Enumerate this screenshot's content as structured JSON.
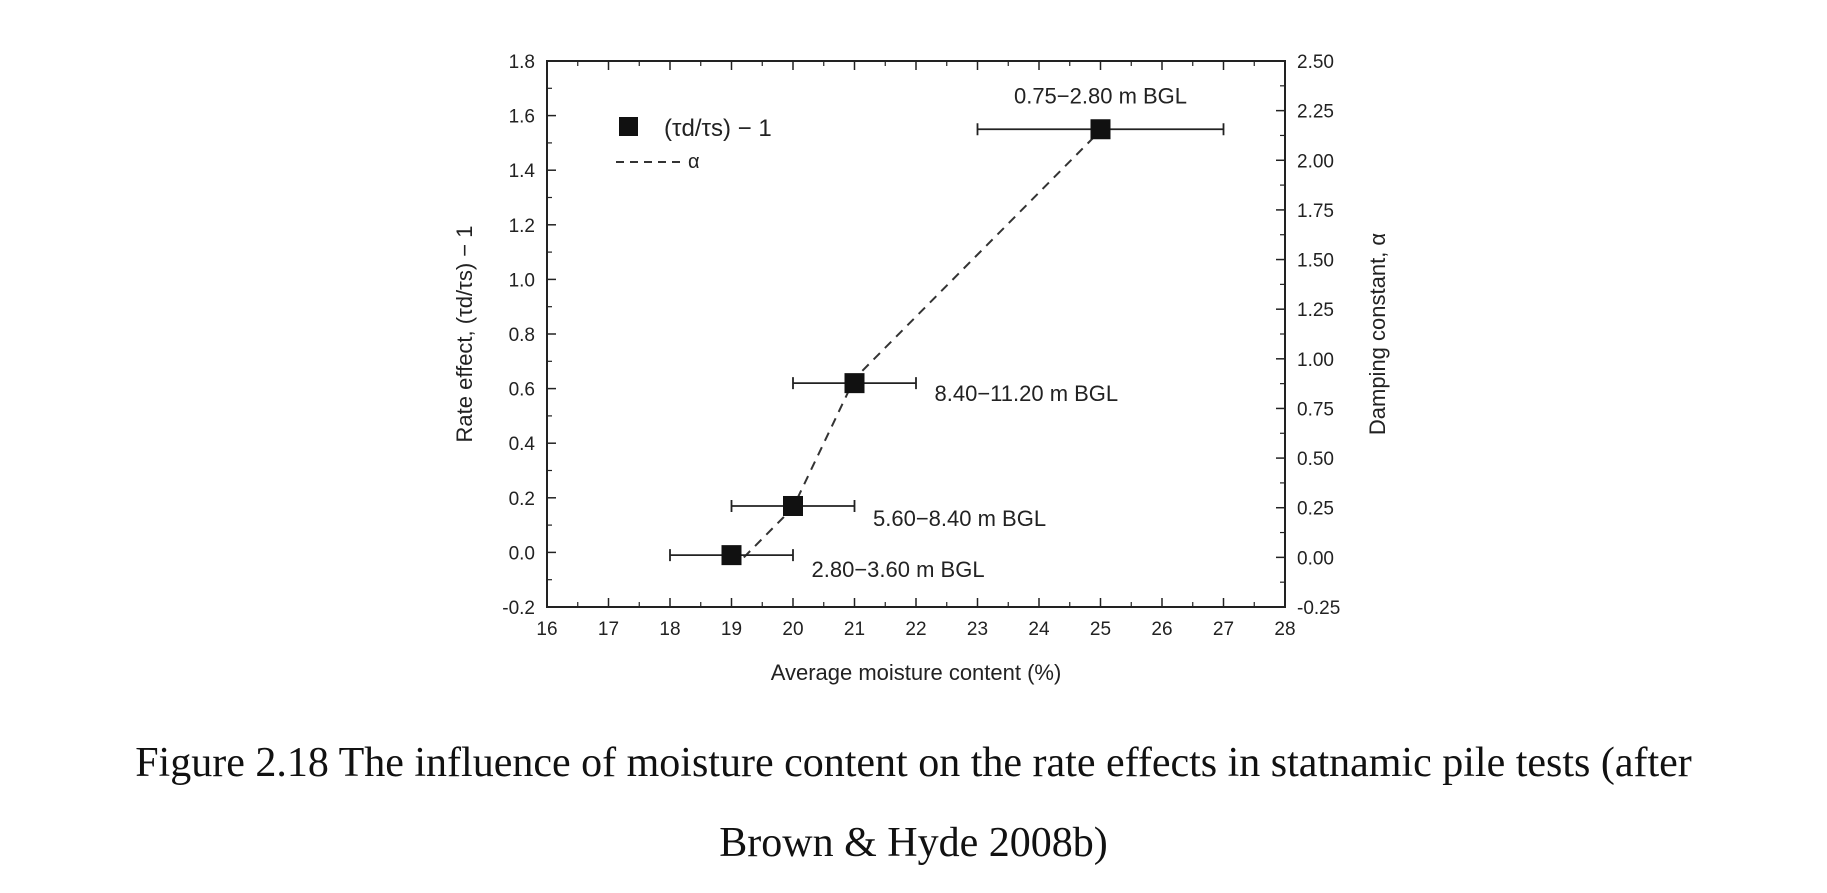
{
  "chart_data": {
    "type": "scatter",
    "xlabel": "Average moisture content (%)",
    "ylabel": "Rate effect, (τd/τs) − 1",
    "y2label": "Damping constant, α",
    "xlim": [
      16,
      28
    ],
    "ylim": [
      -0.2,
      1.8
    ],
    "y2lim": [
      -0.25,
      2.5
    ],
    "x_ticks": [
      16,
      17,
      18,
      19,
      20,
      21,
      22,
      23,
      24,
      25,
      26,
      27,
      28
    ],
    "y_ticks": [
      "-0.2",
      "0.0",
      "0.2",
      "0.4",
      "0.6",
      "0.8",
      "1.0",
      "1.2",
      "1.4",
      "1.6",
      "1.8"
    ],
    "y2_ticks": [
      "-0.25",
      "0.00",
      "0.25",
      "0.50",
      "0.75",
      "1.00",
      "1.25",
      "1.50",
      "1.75",
      "2.00",
      "2.25",
      "2.50"
    ],
    "legend_position": "top-left",
    "legend": [
      {
        "label_main": "(τd/τs) − 1",
        "marker": "square"
      },
      {
        "label_main": "α",
        "marker": "dashed-line"
      }
    ],
    "series": [
      {
        "name": "(τd/τs) − 1",
        "axis": "left",
        "points": [
          {
            "x": 19,
            "y": -0.01,
            "xerr_low": 18,
            "xerr_high": 20,
            "label": "2.80−3.60 m BGL"
          },
          {
            "x": 20,
            "y": 0.17,
            "xerr_low": 19,
            "xerr_high": 21,
            "label": "5.60−8.40 m BGL"
          },
          {
            "x": 21,
            "y": 0.62,
            "xerr_low": 20,
            "xerr_high": 22,
            "label": "8.40−11.20 m BGL"
          },
          {
            "x": 25,
            "y": 1.55,
            "xerr_low": 23,
            "xerr_high": 27,
            "label": "0.75−2.80 m BGL"
          }
        ]
      },
      {
        "name": "α",
        "axis": "right",
        "style": "dashed",
        "x": [
          19.2,
          20,
          21,
          25
        ],
        "y": [
          0.0,
          0.25,
          0.9,
          2.15
        ]
      }
    ]
  },
  "caption": {
    "line1": "Figure 2.18 The influence of moisture content on the rate effects in statnamic pile tests (after",
    "line2": "Brown & Hyde 2008b)"
  }
}
